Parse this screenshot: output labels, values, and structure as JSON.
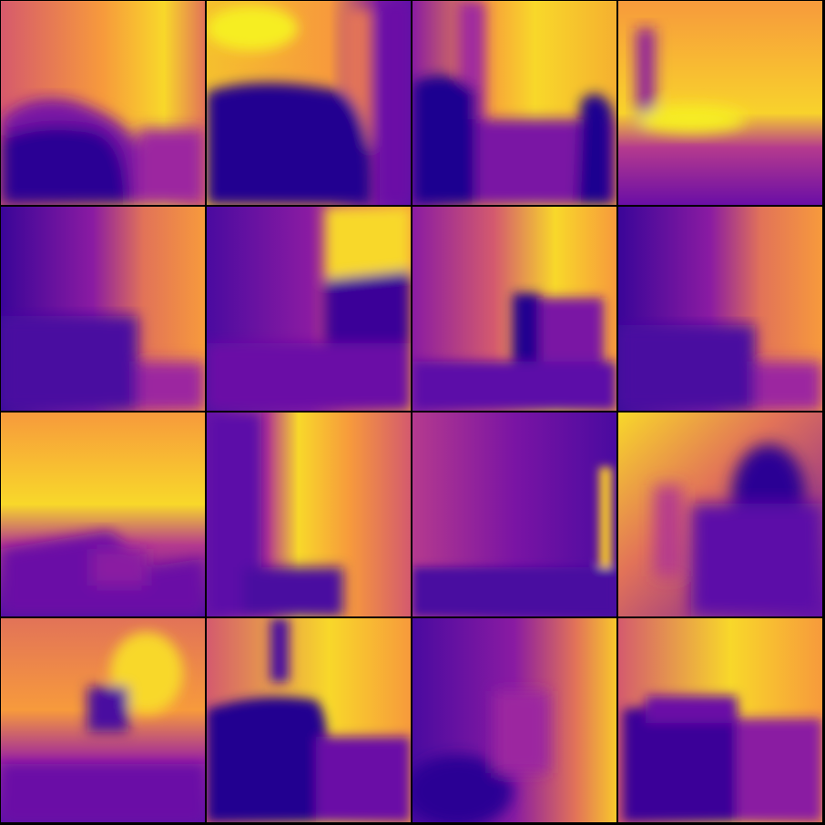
{
  "grid": {
    "rows": 4,
    "cols": 4,
    "tiles": [
      {
        "name": "depth-tile-r1c1"
      },
      {
        "name": "depth-tile-r1c2"
      },
      {
        "name": "depth-tile-r1c3"
      },
      {
        "name": "depth-tile-r1c4"
      },
      {
        "name": "depth-tile-r2c1"
      },
      {
        "name": "depth-tile-r2c2"
      },
      {
        "name": "depth-tile-r2c3"
      },
      {
        "name": "depth-tile-r2c4"
      },
      {
        "name": "depth-tile-r3c1"
      },
      {
        "name": "depth-tile-r3c2"
      },
      {
        "name": "depth-tile-r3c3"
      },
      {
        "name": "depth-tile-r3c4"
      },
      {
        "name": "depth-tile-r4c1"
      },
      {
        "name": "depth-tile-r4c2"
      },
      {
        "name": "depth-tile-r4c3"
      },
      {
        "name": "depth-tile-r4c4"
      }
    ]
  },
  "colormap": {
    "name": "plasma",
    "near": "#1a0590",
    "mid_dark": "#5c0aa8",
    "mid": "#9c25a0",
    "mid_light": "#d45a6e",
    "far": "#f79a3c",
    "farthest": "#f4f122"
  }
}
